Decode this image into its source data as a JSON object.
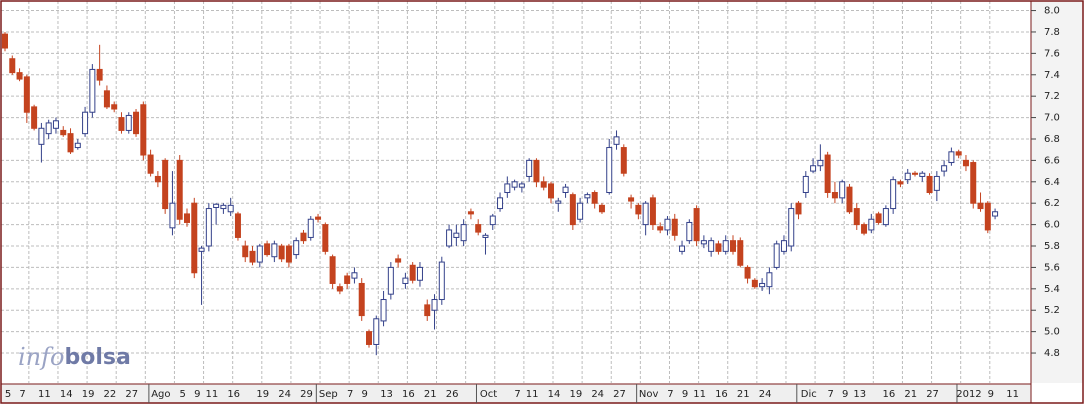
{
  "chart_data": {
    "type": "candlestick",
    "logo": {
      "prefix": "info",
      "suffix": "bolsa"
    },
    "categories": [
      "5",
      null,
      "7",
      null,
      null,
      "11",
      null,
      null,
      "14",
      null,
      null,
      "19",
      null,
      null,
      "22",
      null,
      null,
      "27",
      null,
      null,
      null,
      "Ago",
      null,
      null,
      "5",
      null,
      "9",
      null,
      "11",
      null,
      null,
      "16",
      null,
      null,
      null,
      "19",
      null,
      null,
      "24",
      null,
      null,
      "29",
      null,
      null,
      "Sep",
      null,
      null,
      "7",
      null,
      "9",
      null,
      null,
      "13",
      null,
      null,
      "16",
      null,
      null,
      "21",
      null,
      null,
      "26",
      null,
      null,
      null,
      null,
      "Oct",
      null,
      null,
      null,
      "7",
      null,
      "11",
      null,
      null,
      "14",
      null,
      null,
      "19",
      null,
      null,
      "24",
      null,
      null,
      "27",
      null,
      null,
      null,
      "Nov",
      null,
      null,
      "7",
      null,
      "9",
      null,
      "11",
      null,
      null,
      "16",
      null,
      null,
      "21",
      null,
      null,
      "24",
      null,
      null,
      null,
      null,
      null,
      "Dic",
      null,
      null,
      "7",
      null,
      "9",
      null,
      "13",
      null,
      null,
      null,
      "16",
      null,
      null,
      "21",
      null,
      null,
      "27",
      null,
      null,
      null,
      null,
      "2012",
      null,
      null,
      "9",
      null,
      null,
      "11"
    ],
    "open": [
      7.78,
      7.55,
      7.42,
      7.38,
      7.1,
      6.75,
      6.85,
      6.9,
      6.88,
      6.85,
      6.72,
      6.85,
      7.05,
      7.45,
      7.25,
      7.12,
      7.0,
      6.88,
      7.05,
      7.12,
      6.65,
      6.45,
      6.6,
      5.97,
      6.6,
      6.1,
      6.2,
      5.75,
      5.8,
      6.16,
      6.15,
      6.12,
      6.1,
      5.8,
      5.75,
      5.65,
      5.82,
      5.7,
      5.8,
      5.8,
      5.72,
      5.92,
      5.88,
      6.07,
      6.0,
      5.7,
      5.42,
      5.52,
      5.5,
      5.45,
      5.0,
      4.88,
      5.1,
      5.35,
      5.68,
      5.45,
      5.62,
      5.48,
      5.25,
      5.2,
      5.3,
      5.8,
      5.88,
      5.85,
      6.12,
      6.0,
      5.88,
      6.0,
      6.15,
      6.3,
      6.35,
      6.35,
      6.45,
      6.6,
      6.4,
      6.38,
      6.2,
      6.3,
      6.28,
      6.05,
      6.25,
      6.3,
      6.18,
      6.3,
      6.75,
      6.72,
      6.25,
      6.18,
      6.0,
      6.25,
      5.98,
      5.95,
      6.05,
      5.75,
      5.85,
      6.15,
      5.82,
      5.75,
      5.82,
      5.75,
      5.85,
      5.85,
      5.6,
      5.48,
      5.42,
      5.42,
      5.6,
      5.75,
      5.8,
      6.2,
      6.3,
      6.5,
      6.55,
      6.65,
      6.3,
      6.25,
      6.35,
      6.15,
      6.0,
      5.95,
      6.1,
      6.0,
      6.15,
      6.4,
      6.42,
      6.48,
      6.45,
      6.45,
      6.32,
      6.5,
      6.58,
      6.68,
      6.6,
      6.58,
      6.2,
      6.2,
      6.08,
      null,
      null
    ],
    "high": [
      7.8,
      7.58,
      7.46,
      7.4,
      7.12,
      6.95,
      6.98,
      7.0,
      6.92,
      6.9,
      6.8,
      7.1,
      7.5,
      7.68,
      7.3,
      7.15,
      7.05,
      7.05,
      7.08,
      7.15,
      6.7,
      6.5,
      6.62,
      6.5,
      6.65,
      6.15,
      6.25,
      5.8,
      6.2,
      6.2,
      6.2,
      6.25,
      6.12,
      5.85,
      5.8,
      5.82,
      5.85,
      5.85,
      5.82,
      5.82,
      5.88,
      5.95,
      6.08,
      6.1,
      6.02,
      5.72,
      5.45,
      5.55,
      5.6,
      5.5,
      5.02,
      5.15,
      5.38,
      5.65,
      5.72,
      5.55,
      5.65,
      5.65,
      5.3,
      5.35,
      5.7,
      6.0,
      6.0,
      6.05,
      6.15,
      6.05,
      5.92,
      6.1,
      6.3,
      6.45,
      6.42,
      6.4,
      6.62,
      6.62,
      6.45,
      6.4,
      6.25,
      6.38,
      6.3,
      6.25,
      6.3,
      6.32,
      6.2,
      6.8,
      6.88,
      6.75,
      6.28,
      6.2,
      6.22,
      6.28,
      6.02,
      6.08,
      6.1,
      5.85,
      6.05,
      6.18,
      5.9,
      5.88,
      5.85,
      5.9,
      5.9,
      5.88,
      5.62,
      5.5,
      5.5,
      5.6,
      5.85,
      5.9,
      6.2,
      6.22,
      6.5,
      6.62,
      6.75,
      6.68,
      6.4,
      6.42,
      6.38,
      6.2,
      6.02,
      6.1,
      6.12,
      6.18,
      6.45,
      6.42,
      6.52,
      6.5,
      6.5,
      6.48,
      6.5,
      6.6,
      6.72,
      6.7,
      6.65,
      6.6,
      6.3,
      6.22,
      6.15,
      null,
      null
    ],
    "low": [
      7.62,
      7.4,
      7.34,
      6.95,
      6.88,
      6.58,
      6.8,
      6.85,
      6.82,
      6.66,
      6.7,
      6.82,
      7.0,
      7.3,
      7.08,
      7.05,
      6.85,
      6.85,
      6.82,
      6.6,
      6.45,
      6.35,
      6.1,
      5.9,
      6.0,
      5.98,
      5.5,
      5.25,
      5.75,
      6.0,
      6.1,
      6.08,
      5.85,
      5.65,
      5.62,
      5.6,
      5.7,
      5.65,
      5.65,
      5.6,
      5.68,
      5.82,
      5.85,
      6.02,
      5.72,
      5.4,
      5.35,
      5.4,
      5.45,
      5.1,
      4.85,
      4.78,
      5.05,
      5.3,
      5.6,
      5.4,
      5.45,
      5.42,
      5.1,
      5.02,
      5.25,
      5.78,
      5.8,
      5.8,
      6.05,
      5.9,
      5.72,
      5.95,
      6.12,
      6.25,
      6.32,
      6.3,
      6.4,
      6.35,
      6.32,
      6.2,
      6.12,
      6.25,
      5.95,
      6.02,
      6.2,
      6.15,
      6.1,
      6.28,
      6.7,
      6.45,
      6.15,
      6.05,
      5.9,
      5.95,
      5.92,
      5.9,
      5.85,
      5.72,
      5.82,
      5.8,
      5.78,
      5.7,
      5.72,
      5.72,
      5.72,
      5.6,
      5.45,
      5.4,
      5.38,
      5.35,
      5.58,
      5.72,
      5.75,
      6.05,
      6.25,
      6.48,
      6.5,
      6.25,
      6.2,
      6.2,
      6.1,
      5.95,
      5.9,
      5.92,
      6.0,
      5.98,
      6.1,
      6.35,
      6.38,
      6.45,
      6.4,
      6.28,
      6.22,
      6.45,
      6.55,
      6.62,
      6.5,
      6.15,
      6.12,
      5.92,
      6.05,
      null,
      null
    ],
    "close": [
      7.65,
      7.42,
      7.36,
      7.05,
      6.9,
      6.9,
      6.95,
      6.97,
      6.84,
      6.68,
      6.76,
      7.05,
      7.45,
      7.35,
      7.1,
      7.08,
      6.88,
      7.02,
      6.85,
      6.65,
      6.48,
      6.4,
      6.15,
      6.2,
      6.05,
      6.02,
      5.55,
      5.78,
      6.15,
      6.19,
      6.18,
      6.18,
      5.88,
      5.7,
      5.65,
      5.8,
      5.72,
      5.82,
      5.68,
      5.65,
      5.85,
      5.85,
      6.05,
      6.05,
      5.75,
      5.45,
      5.38,
      5.45,
      5.55,
      5.15,
      4.88,
      5.12,
      5.3,
      5.6,
      5.65,
      5.5,
      5.48,
      5.6,
      5.15,
      5.3,
      5.65,
      5.95,
      5.92,
      6.0,
      6.1,
      5.93,
      5.9,
      6.08,
      6.25,
      6.38,
      6.4,
      6.38,
      6.6,
      6.4,
      6.35,
      6.25,
      6.22,
      6.35,
      6.0,
      6.2,
      6.28,
      6.2,
      6.12,
      6.72,
      6.82,
      6.48,
      6.22,
      6.1,
      6.2,
      6.0,
      5.95,
      6.05,
      5.9,
      5.8,
      6.02,
      5.85,
      5.85,
      5.85,
      5.75,
      5.85,
      5.75,
      5.62,
      5.5,
      5.42,
      5.45,
      5.55,
      5.82,
      5.85,
      6.15,
      6.1,
      6.45,
      6.55,
      6.6,
      6.3,
      6.25,
      6.4,
      6.12,
      6.0,
      5.92,
      6.05,
      6.02,
      6.15,
      6.42,
      6.38,
      6.48,
      6.47,
      6.48,
      6.3,
      6.45,
      6.55,
      6.68,
      6.65,
      6.55,
      6.2,
      6.15,
      5.95,
      6.12,
      null,
      null
    ],
    "up_color": "#34418a",
    "down_color": "#c4431f",
    "ylim": [
      4.52,
      8.08
    ],
    "yticks": [
      4.8,
      {
        "value": 5,
        "label": "5.0"
      },
      5.2,
      5.4,
      5.6,
      5.8,
      {
        "value": 6,
        "label": "6.0"
      },
      6.2,
      6.4,
      6.6,
      6.8,
      {
        "value": 7,
        "label": "7.0"
      },
      7.2,
      7.4,
      7.6,
      7.8,
      {
        "value": 8,
        "label": "8.0"
      }
    ],
    "grid": true
  }
}
